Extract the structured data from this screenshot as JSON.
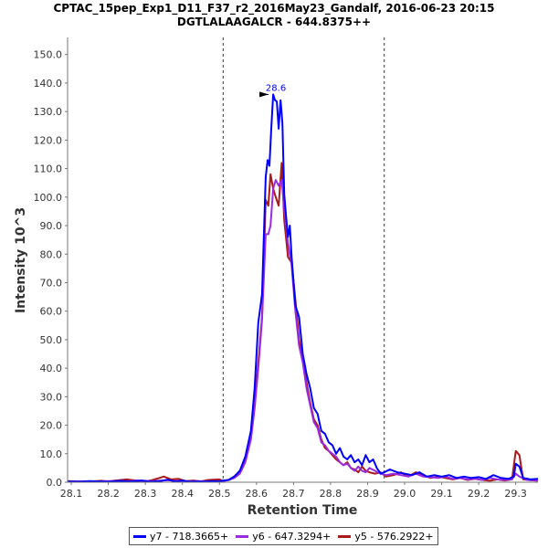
{
  "chart_data": {
    "type": "line",
    "title": "CPTAC_15pep_Exp1_D11_F37_r2_2016May23_Gandalf, 2016-06-23 20:15",
    "subtitle": "DGTLALAAGALCR - 644.8375++",
    "xlabel": "Retention Time",
    "ylabel": "Intensity 10^3",
    "xlim": [
      28.09,
      29.36
    ],
    "ylim": [
      0,
      156
    ],
    "x_ticks": [
      "28.1",
      "28.2",
      "28.3",
      "28.4",
      "28.5",
      "28.6",
      "28.7",
      "28.8",
      "28.9",
      "29.0",
      "29.1",
      "29.2",
      "29.3"
    ],
    "y_ticks": [
      "0.0",
      "10.0",
      "20.0",
      "30.0",
      "40.0",
      "50.0",
      "60.0",
      "70.0",
      "80.0",
      "90.0",
      "100.0",
      "110.0",
      "120.0",
      "130.0",
      "140.0",
      "150.0"
    ],
    "vlines": [
      28.51,
      28.945
    ],
    "peak_annotation": {
      "label": "28.6",
      "x": 28.645,
      "y": 136
    },
    "legend_position": "bottom",
    "series": [
      {
        "name": "y7 - 718.3665+",
        "color": "#0000ff",
        "points": [
          [
            28.09,
            0.3
          ],
          [
            28.12,
            0.2
          ],
          [
            28.15,
            0.4
          ],
          [
            28.18,
            0.3
          ],
          [
            28.2,
            0.2
          ],
          [
            28.23,
            0.5
          ],
          [
            28.26,
            0.3
          ],
          [
            28.29,
            0.6
          ],
          [
            28.31,
            0.2
          ],
          [
            28.34,
            0.4
          ],
          [
            28.36,
            0.9
          ],
          [
            28.38,
            0.3
          ],
          [
            28.4,
            0.6
          ],
          [
            28.42,
            0.2
          ],
          [
            28.44,
            0.3
          ],
          [
            28.46,
            0.2
          ],
          [
            28.48,
            0.4
          ],
          [
            28.5,
            0.3
          ],
          [
            28.51,
            0.6
          ],
          [
            28.525,
            0.8
          ],
          [
            28.54,
            2.0
          ],
          [
            28.555,
            4.0
          ],
          [
            28.57,
            9.0
          ],
          [
            28.585,
            18.0
          ],
          [
            28.595,
            33.0
          ],
          [
            28.605,
            56.0
          ],
          [
            28.615,
            66.0
          ],
          [
            28.625,
            107.0
          ],
          [
            28.63,
            113.0
          ],
          [
            28.635,
            111.0
          ],
          [
            28.64,
            124.0
          ],
          [
            28.645,
            136.0
          ],
          [
            28.65,
            134.0
          ],
          [
            28.655,
            133.5
          ],
          [
            28.66,
            124.0
          ],
          [
            28.665,
            134.0
          ],
          [
            28.67,
            126.0
          ],
          [
            28.675,
            101.0
          ],
          [
            28.68,
            93.0
          ],
          [
            28.685,
            86.0
          ],
          [
            28.69,
            90.0
          ],
          [
            28.695,
            79.0
          ],
          [
            28.705,
            62.0
          ],
          [
            28.715,
            58.0
          ],
          [
            28.725,
            45.0
          ],
          [
            28.735,
            38.0
          ],
          [
            28.745,
            33.0
          ],
          [
            28.755,
            26.0
          ],
          [
            28.765,
            24.0
          ],
          [
            28.775,
            18.0
          ],
          [
            28.785,
            17.0
          ],
          [
            28.795,
            14.0
          ],
          [
            28.805,
            13.0
          ],
          [
            28.815,
            10.0
          ],
          [
            28.825,
            12.0
          ],
          [
            28.835,
            9.0
          ],
          [
            28.845,
            8.0
          ],
          [
            28.855,
            9.5
          ],
          [
            28.865,
            7.0
          ],
          [
            28.875,
            8.0
          ],
          [
            28.885,
            6.0
          ],
          [
            28.895,
            9.5
          ],
          [
            28.905,
            7.0
          ],
          [
            28.915,
            8.0
          ],
          [
            28.925,
            5.0
          ],
          [
            28.935,
            3.0
          ],
          [
            28.945,
            3.5
          ],
          [
            28.96,
            4.5
          ],
          [
            28.98,
            3.5
          ],
          [
            29.0,
            3.0
          ],
          [
            29.02,
            2.5
          ],
          [
            29.04,
            3.5
          ],
          [
            29.06,
            2.0
          ],
          [
            29.08,
            2.5
          ],
          [
            29.1,
            2.0
          ],
          [
            29.12,
            2.5
          ],
          [
            29.14,
            1.5
          ],
          [
            29.16,
            2.0
          ],
          [
            29.18,
            1.5
          ],
          [
            29.2,
            1.8
          ],
          [
            29.22,
            1.2
          ],
          [
            29.24,
            2.5
          ],
          [
            29.26,
            1.5
          ],
          [
            29.28,
            1.2
          ],
          [
            29.295,
            2.0
          ],
          [
            29.3,
            6.5
          ],
          [
            29.31,
            5.5
          ],
          [
            29.32,
            1.5
          ],
          [
            29.34,
            1.0
          ],
          [
            29.36,
            1.2
          ]
        ]
      },
      {
        "name": "y6 - 647.3294+",
        "color": "#9a2be2",
        "points": [
          [
            28.09,
            0.2
          ],
          [
            28.13,
            0.3
          ],
          [
            28.16,
            0.2
          ],
          [
            28.2,
            0.4
          ],
          [
            28.24,
            0.3
          ],
          [
            28.28,
            0.6
          ],
          [
            28.32,
            0.4
          ],
          [
            28.36,
            0.7
          ],
          [
            28.4,
            0.3
          ],
          [
            28.44,
            0.4
          ],
          [
            28.48,
            0.3
          ],
          [
            28.51,
            0.4
          ],
          [
            28.525,
            0.8
          ],
          [
            28.54,
            1.5
          ],
          [
            28.555,
            3.0
          ],
          [
            28.57,
            7.0
          ],
          [
            28.585,
            15.0
          ],
          [
            28.595,
            26.0
          ],
          [
            28.605,
            40.0
          ],
          [
            28.615,
            57.0
          ],
          [
            28.625,
            87.0
          ],
          [
            28.632,
            87.0
          ],
          [
            28.638,
            90.0
          ],
          [
            28.645,
            103.0
          ],
          [
            28.652,
            106.0
          ],
          [
            28.66,
            104.0
          ],
          [
            28.668,
            106.0
          ],
          [
            28.675,
            96.0
          ],
          [
            28.685,
            84.0
          ],
          [
            28.695,
            76.0
          ],
          [
            28.705,
            60.0
          ],
          [
            28.715,
            48.0
          ],
          [
            28.725,
            42.0
          ],
          [
            28.735,
            33.0
          ],
          [
            28.745,
            27.0
          ],
          [
            28.755,
            21.0
          ],
          [
            28.765,
            19.0
          ],
          [
            28.775,
            14.0
          ],
          [
            28.785,
            13.0
          ],
          [
            28.795,
            11.0
          ],
          [
            28.805,
            10.0
          ],
          [
            28.815,
            9.0
          ],
          [
            28.825,
            7.0
          ],
          [
            28.835,
            6.0
          ],
          [
            28.845,
            6.5
          ],
          [
            28.855,
            5.0
          ],
          [
            28.865,
            4.0
          ],
          [
            28.875,
            5.5
          ],
          [
            28.885,
            4.0
          ],
          [
            28.895,
            3.5
          ],
          [
            28.905,
            5.0
          ],
          [
            28.92,
            4.0
          ],
          [
            28.935,
            3.0
          ],
          [
            28.95,
            2.5
          ],
          [
            28.97,
            3.0
          ],
          [
            28.99,
            2.5
          ],
          [
            29.01,
            2.0
          ],
          [
            29.03,
            3.0
          ],
          [
            29.05,
            2.0
          ],
          [
            29.07,
            1.8
          ],
          [
            29.09,
            1.5
          ],
          [
            29.11,
            2.0
          ],
          [
            29.13,
            1.2
          ],
          [
            29.15,
            1.5
          ],
          [
            29.17,
            1.0
          ],
          [
            29.19,
            1.2
          ],
          [
            29.21,
            0.8
          ],
          [
            29.23,
            1.5
          ],
          [
            29.25,
            1.0
          ],
          [
            29.27,
            0.8
          ],
          [
            29.29,
            1.0
          ],
          [
            29.3,
            3.0
          ],
          [
            29.31,
            2.0
          ],
          [
            29.33,
            0.8
          ],
          [
            29.36,
            0.6
          ]
        ]
      },
      {
        "name": "y5 - 576.2922+",
        "color": "#aa1a1a",
        "points": [
          [
            28.09,
            0.4
          ],
          [
            28.12,
            0.3
          ],
          [
            28.15,
            0.2
          ],
          [
            28.18,
            0.5
          ],
          [
            28.2,
            0.3
          ],
          [
            28.22,
            0.6
          ],
          [
            28.25,
            1.0
          ],
          [
            28.28,
            0.5
          ],
          [
            28.3,
            0.3
          ],
          [
            28.32,
            0.8
          ],
          [
            28.35,
            2.0
          ],
          [
            28.37,
            1.0
          ],
          [
            28.39,
            1.2
          ],
          [
            28.41,
            0.4
          ],
          [
            28.43,
            0.6
          ],
          [
            28.45,
            0.3
          ],
          [
            28.47,
            0.8
          ],
          [
            28.5,
            1.0
          ],
          [
            28.51,
            0.4
          ],
          [
            28.525,
            0.9
          ],
          [
            28.54,
            2.0
          ],
          [
            28.555,
            4.0
          ],
          [
            28.57,
            8.0
          ],
          [
            28.585,
            17.0
          ],
          [
            28.595,
            28.0
          ],
          [
            28.605,
            42.0
          ],
          [
            28.615,
            58.0
          ],
          [
            28.625,
            99.0
          ],
          [
            28.632,
            97.0
          ],
          [
            28.638,
            108.0
          ],
          [
            28.645,
            103.0
          ],
          [
            28.652,
            100.0
          ],
          [
            28.66,
            97.0
          ],
          [
            28.668,
            112.0
          ],
          [
            28.675,
            92.0
          ],
          [
            28.685,
            79.0
          ],
          [
            28.695,
            77.0
          ],
          [
            28.705,
            64.0
          ],
          [
            28.715,
            50.0
          ],
          [
            28.725,
            43.0
          ],
          [
            28.735,
            35.0
          ],
          [
            28.745,
            28.0
          ],
          [
            28.755,
            22.0
          ],
          [
            28.765,
            20.0
          ],
          [
            28.775,
            15.0
          ],
          [
            28.785,
            12.0
          ],
          [
            28.795,
            11.0
          ],
          [
            28.805,
            9.5
          ],
          [
            28.815,
            8.0
          ],
          [
            28.825,
            7.0
          ],
          [
            28.835,
            6.0
          ],
          [
            28.845,
            7.0
          ],
          [
            28.855,
            5.0
          ],
          [
            28.865,
            4.5
          ],
          [
            28.875,
            3.5
          ],
          [
            28.885,
            5.5
          ],
          [
            28.895,
            4.0
          ],
          [
            28.905,
            3.5
          ],
          [
            28.92,
            3.0
          ],
          [
            28.935,
            3.5
          ],
          [
            28.95,
            2.0
          ],
          [
            28.97,
            2.5
          ],
          [
            28.99,
            3.5
          ],
          [
            29.01,
            2.0
          ],
          [
            29.03,
            3.5
          ],
          [
            29.05,
            2.5
          ],
          [
            29.07,
            1.5
          ],
          [
            29.09,
            2.0
          ],
          [
            29.11,
            1.5
          ],
          [
            29.13,
            1.0
          ],
          [
            29.15,
            1.5
          ],
          [
            29.17,
            0.8
          ],
          [
            29.19,
            1.2
          ],
          [
            29.21,
            0.8
          ],
          [
            29.23,
            0.5
          ],
          [
            29.25,
            1.0
          ],
          [
            29.27,
            0.6
          ],
          [
            29.29,
            1.0
          ],
          [
            29.3,
            11.0
          ],
          [
            29.31,
            9.5
          ],
          [
            29.32,
            1.0
          ],
          [
            29.34,
            0.7
          ],
          [
            29.36,
            0.5
          ]
        ]
      }
    ]
  }
}
